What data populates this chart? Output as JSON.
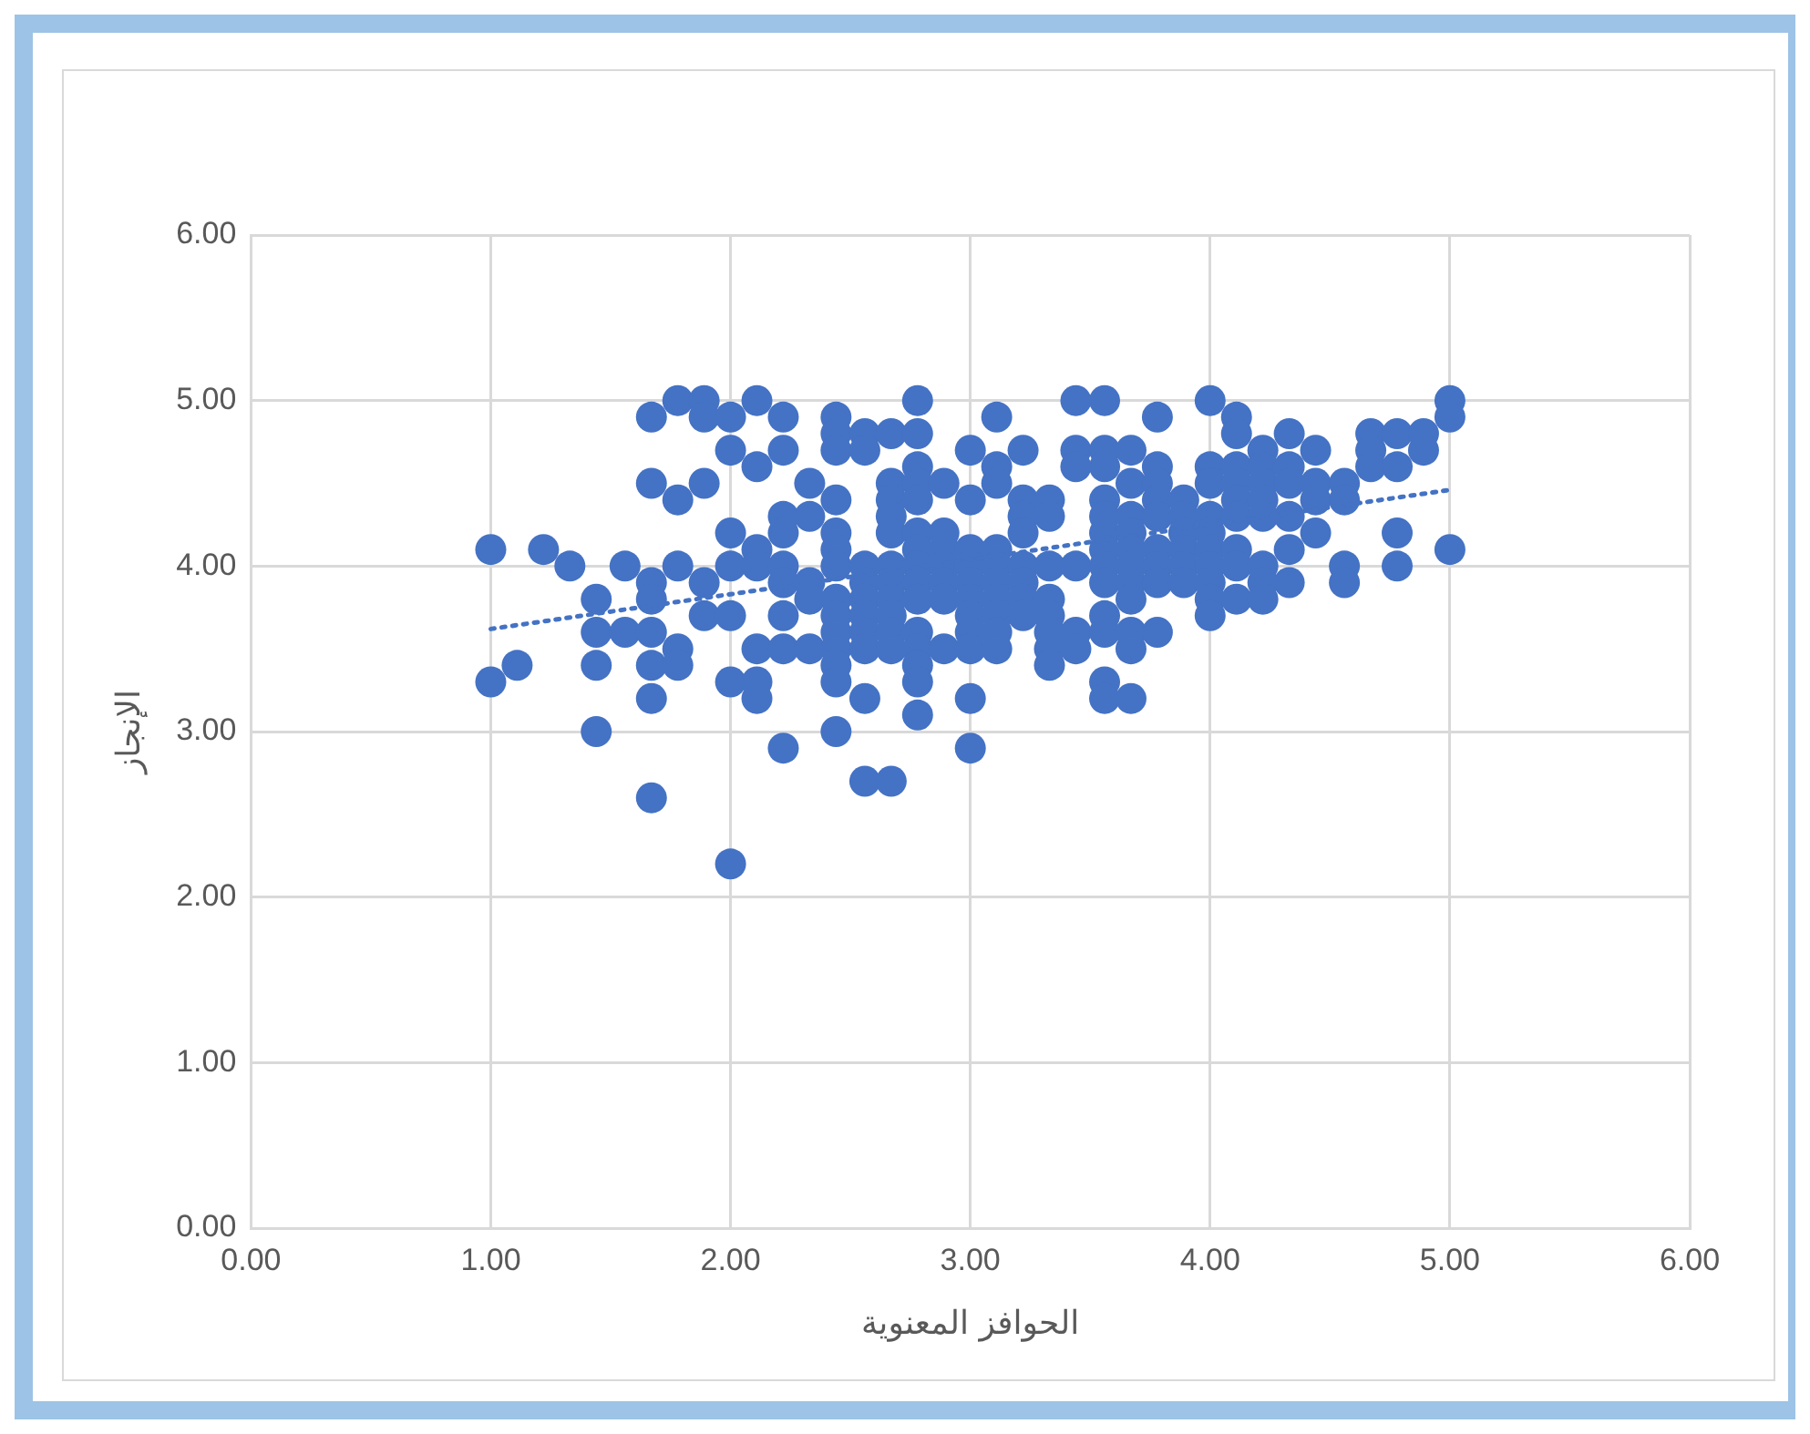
{
  "chart_data": {
    "type": "scatter",
    "xlabel": "الحوافز المعنوية",
    "ylabel": "الإنجاز",
    "xlim": [
      0,
      6
    ],
    "xticks": [
      {
        "value": 0,
        "label": "0.00"
      },
      {
        "value": 1,
        "label": "1.00"
      },
      {
        "value": 2,
        "label": "2.00"
      },
      {
        "value": 3,
        "label": "3.00"
      },
      {
        "value": 4,
        "label": "4.00"
      },
      {
        "value": 5,
        "label": "5.00"
      },
      {
        "value": 6,
        "label": "6.00"
      }
    ],
    "ylim": [
      0,
      6
    ],
    "yticks": [
      {
        "value": 0,
        "label": "0.00"
      },
      {
        "value": 1,
        "label": "1.00"
      },
      {
        "value": 2,
        "label": "2.00"
      },
      {
        "value": 3,
        "label": "3.00"
      },
      {
        "value": 4,
        "label": "4.00"
      },
      {
        "value": 5,
        "label": "5.00"
      },
      {
        "value": 6,
        "label": "6.00"
      }
    ],
    "grid": true,
    "legend": false,
    "marker": "circle",
    "series": [
      {
        "type": "scatter",
        "color": "#4472c4",
        "x": [
          1,
          1,
          1.11,
          1.22,
          1.33,
          1.44,
          1.44,
          1.44,
          1.44,
          1.56,
          1.56,
          1.67,
          1.67,
          1.67,
          1.67,
          1.67,
          1.67,
          1.67,
          1.67,
          1.78,
          1.78,
          1.78,
          1.78,
          1.78,
          1.89,
          1.89,
          1.89,
          1.89,
          1.89,
          2,
          2,
          2,
          2,
          2,
          2,
          2,
          2.11,
          2.11,
          2.11,
          2.11,
          2.11,
          2.11,
          2.11,
          2.22,
          2.22,
          2.22,
          2.22,
          2.22,
          2.22,
          2.22,
          2.22,
          2.22,
          2.33,
          2.33,
          2.33,
          2.33,
          2.33,
          2.44,
          2.44,
          2.44,
          2.44,
          2.44,
          2.44,
          2.44,
          2.44,
          2.44,
          2.44,
          2.44,
          2.44,
          2.44,
          2.44,
          2.56,
          2.56,
          2.56,
          2.56,
          2.56,
          2.56,
          2.56,
          2.56,
          2.56,
          2.56,
          2.67,
          2.67,
          2.67,
          2.67,
          2.67,
          2.67,
          2.67,
          2.67,
          2.67,
          2.67,
          2.67,
          2.67,
          2.78,
          2.78,
          2.78,
          2.78,
          2.78,
          2.78,
          2.78,
          2.78,
          2.78,
          2.78,
          2.78,
          2.78,
          2.78,
          2.78,
          2.78,
          2.89,
          2.89,
          2.89,
          2.89,
          2.89,
          2.89,
          2.89,
          3,
          3,
          3,
          3,
          3,
          3,
          3,
          3,
          3,
          3,
          3,
          3.11,
          3.11,
          3.11,
          3.11,
          3.11,
          3.11,
          3.11,
          3.11,
          3.11,
          3.11,
          3.22,
          3.22,
          3.22,
          3.22,
          3.22,
          3.22,
          3.22,
          3.22,
          3.33,
          3.33,
          3.33,
          3.33,
          3.33,
          3.33,
          3.33,
          3.33,
          3.44,
          3.44,
          3.44,
          3.44,
          3.44,
          3.44,
          3.56,
          3.56,
          3.56,
          3.56,
          3.56,
          3.56,
          3.56,
          3.56,
          3.56,
          3.56,
          3.56,
          3.56,
          3.56,
          3.67,
          3.67,
          3.67,
          3.67,
          3.67,
          3.67,
          3.67,
          3.67,
          3.67,
          3.67,
          3.67,
          3.78,
          3.78,
          3.78,
          3.78,
          3.78,
          3.78,
          3.78,
          3.78,
          3.78,
          3.89,
          3.89,
          3.89,
          3.89,
          3.89,
          3.89,
          4,
          4,
          4,
          4,
          4,
          4,
          4,
          4,
          4,
          4,
          4.11,
          4.11,
          4.11,
          4.11,
          4.11,
          4.11,
          4.11,
          4.11,
          4.11,
          4.22,
          4.22,
          4.22,
          4.22,
          4.22,
          4.22,
          4.22,
          4.22,
          4.33,
          4.33,
          4.33,
          4.33,
          4.33,
          4.33,
          4.44,
          4.44,
          4.44,
          4.44,
          4.56,
          4.56,
          4.56,
          4.56,
          4.67,
          4.67,
          4.67,
          4.78,
          4.78,
          4.78,
          4.78,
          4.89,
          4.89,
          5,
          5,
          5
        ],
        "values": [
          4.1,
          3.3,
          3.4,
          4.1,
          4.0,
          3.8,
          3.6,
          3.4,
          3.0,
          4.0,
          3.6,
          4.9,
          4.5,
          3.9,
          3.8,
          3.6,
          3.4,
          3.2,
          2.6,
          5.0,
          4.4,
          4.0,
          3.5,
          3.4,
          5.0,
          4.9,
          4.5,
          3.9,
          3.7,
          4.9,
          4.7,
          4.2,
          4.0,
          3.7,
          3.3,
          2.2,
          5.0,
          4.6,
          4.1,
          4.0,
          3.5,
          3.3,
          3.2,
          4.9,
          4.7,
          4.3,
          4.2,
          4.0,
          3.9,
          3.7,
          3.5,
          2.9,
          4.5,
          4.3,
          3.9,
          3.8,
          3.5,
          4.9,
          4.8,
          4.7,
          4.4,
          4.2,
          4.1,
          4.0,
          3.8,
          3.7,
          3.6,
          3.5,
          3.4,
          3.3,
          3.0,
          4.8,
          4.7,
          4.0,
          3.9,
          3.8,
          3.7,
          3.6,
          3.5,
          3.2,
          2.7,
          4.8,
          4.5,
          4.4,
          4.3,
          4.2,
          4.0,
          3.9,
          3.8,
          3.7,
          3.6,
          3.5,
          2.7,
          5.0,
          4.8,
          4.6,
          4.5,
          4.4,
          4.2,
          4.1,
          4.0,
          3.9,
          3.8,
          3.6,
          3.5,
          3.4,
          3.3,
          3.1,
          4.5,
          4.2,
          4.1,
          4.0,
          3.9,
          3.8,
          3.5,
          4.7,
          4.4,
          4.1,
          4.0,
          3.9,
          3.8,
          3.7,
          3.6,
          3.5,
          3.2,
          2.9,
          4.9,
          4.6,
          4.5,
          4.1,
          4.0,
          3.9,
          3.8,
          3.7,
          3.6,
          3.5,
          4.7,
          4.4,
          4.3,
          4.2,
          4.0,
          3.9,
          3.8,
          3.7,
          4.4,
          4.3,
          4.0,
          3.8,
          3.7,
          3.6,
          3.5,
          3.4,
          5.0,
          4.7,
          4.6,
          4.0,
          3.6,
          3.5,
          5.0,
          4.7,
          4.6,
          4.4,
          4.3,
          4.2,
          4.1,
          4.0,
          3.9,
          3.7,
          3.6,
          3.3,
          3.2,
          4.7,
          4.5,
          4.3,
          4.2,
          4.1,
          4.0,
          3.9,
          3.8,
          3.6,
          3.5,
          3.2,
          4.9,
          4.6,
          4.5,
          4.4,
          4.3,
          4.1,
          4.0,
          3.9,
          3.6,
          4.4,
          4.3,
          4.2,
          4.1,
          4.0,
          3.9,
          5.0,
          4.6,
          4.5,
          4.3,
          4.2,
          4.1,
          4.0,
          3.9,
          3.8,
          3.7,
          4.9,
          4.8,
          4.6,
          4.5,
          4.4,
          4.3,
          4.1,
          4.0,
          3.8,
          4.7,
          4.6,
          4.5,
          4.4,
          4.3,
          4.0,
          3.9,
          3.8,
          4.8,
          4.6,
          4.5,
          4.3,
          4.1,
          3.9,
          4.7,
          4.5,
          4.4,
          4.2,
          4.5,
          4.4,
          4.0,
          3.9,
          4.8,
          4.7,
          4.6,
          4.8,
          4.6,
          4.2,
          4.0,
          4.8,
          4.7,
          5.0,
          4.9,
          4.1
        ]
      },
      {
        "type": "line",
        "color": "#4472c4",
        "line_style": "dotted",
        "marker": "none",
        "x": [
          1,
          5
        ],
        "values": [
          3.62,
          4.46
        ]
      }
    ]
  }
}
